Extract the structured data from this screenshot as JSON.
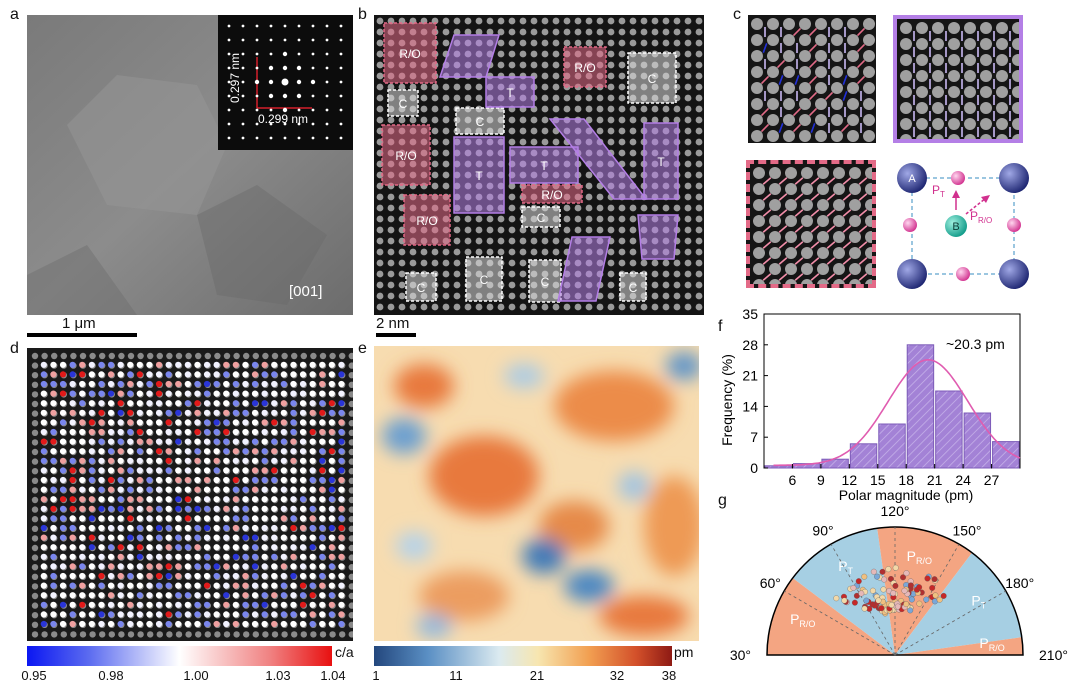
{
  "panel_labels": {
    "a": "a",
    "b": "b",
    "c": "c",
    "d": "d",
    "e": "e",
    "f": "f",
    "g": "g"
  },
  "panel_a": {
    "zone_axis": "[001]",
    "inset_d1": "0.297 nm",
    "inset_d2": "0.299 nm",
    "scale_bar": "1 μm"
  },
  "panel_b": {
    "scale_bar": "2 nm",
    "region_labels": {
      "ro": "R/O",
      "t": "T",
      "c": "C"
    }
  },
  "panel_c": {
    "atom_a": "A",
    "atom_b": "B",
    "pt_main": "P",
    "pt_sub": "T",
    "pro_main": "P",
    "pro_sub": "R/O"
  },
  "panel_d": {
    "colorbar_label": "c/a",
    "ticks": [
      "0.95",
      "0.98",
      "1.00",
      "1.03",
      "1.04"
    ]
  },
  "panel_e": {
    "colorbar_label": "pm",
    "ticks": [
      "1",
      "11",
      "21",
      "32",
      "38"
    ]
  },
  "colors": {
    "bar_fill": "#a382d6",
    "fit_line": "#e05cb0",
    "ro_sector": "#f4a582",
    "t_sector": "#a6cfe3",
    "t_region": "#b47fe6",
    "ro_region": "#e36a87",
    "c_region": "#d8d8d8"
  },
  "chart_data": [
    {
      "type": "bar",
      "panel": "f",
      "xlabel": "Polar magnitude (pm)",
      "ylabel": "Frequency (%)",
      "annotation": "~20.3 pm",
      "x_ticks": [
        "6",
        "9",
        "12",
        "15",
        "18",
        "21",
        "24",
        "27"
      ],
      "y_ticks": [
        "0",
        "7",
        "14",
        "21",
        "28",
        "35"
      ],
      "ylim": [
        0,
        35
      ],
      "xlim": [
        3,
        30
      ],
      "categories": [
        4.5,
        7.5,
        10.5,
        13.5,
        16.5,
        19.5,
        22.5,
        25.5,
        28.5
      ],
      "values": [
        0.5,
        1,
        2,
        5.5,
        10,
        28,
        17.5,
        12.5,
        6
      ],
      "fit": {
        "type": "gaussian",
        "center": 20.3,
        "sigma": 4.2,
        "amplitude": 24
      }
    },
    {
      "type": "polar-scatter",
      "panel": "g",
      "angle_labels": [
        "30°",
        "60°",
        "90°",
        "120°",
        "150°",
        "180°",
        "210°"
      ],
      "sectors": [
        {
          "label_main": "P",
          "label_sub": "R/O",
          "from": 30,
          "to": 67,
          "kind": "ro"
        },
        {
          "label_main": "P",
          "label_sub": "T",
          "from": 67,
          "to": 112,
          "kind": "t"
        },
        {
          "label_main": "P",
          "label_sub": "R/O",
          "from": 112,
          "to": 157,
          "kind": "ro"
        },
        {
          "label_main": "P",
          "label_sub": "T",
          "from": 157,
          "to": 202,
          "kind": "t"
        },
        {
          "label_main": "P",
          "label_sub": "R/O",
          "from": 202,
          "to": 210,
          "kind": "ro"
        }
      ]
    }
  ]
}
